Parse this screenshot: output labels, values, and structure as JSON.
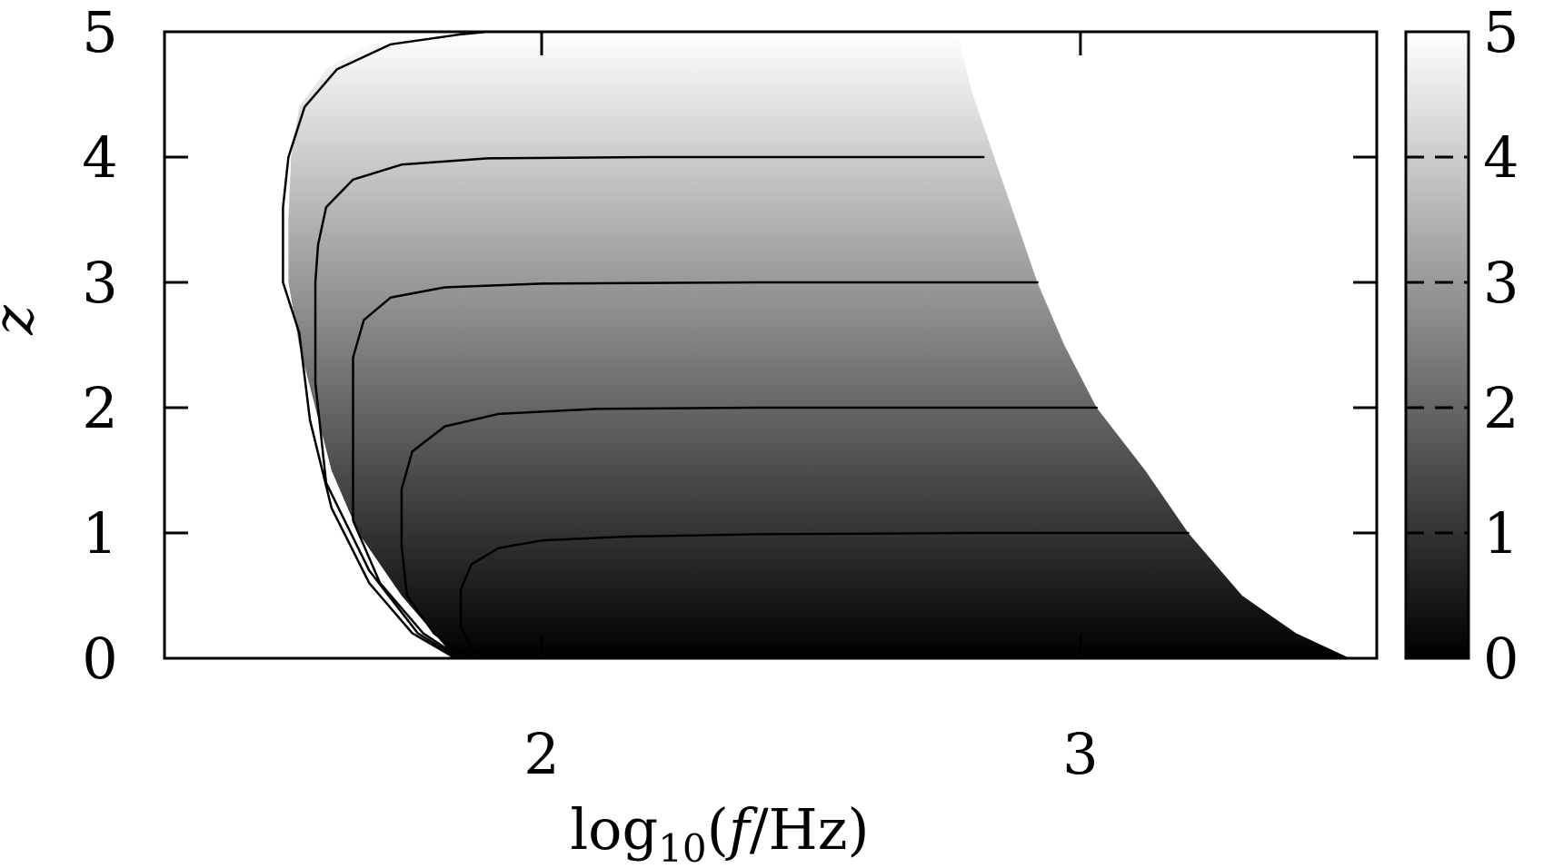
{
  "chart_data": {
    "type": "heatmap",
    "xlabel": "log10(f/Hz)",
    "xlabel_parts": {
      "prefix": "log",
      "subscript": "10",
      "open": "(",
      "variable": "f",
      "unit": "/Hz)"
    },
    "ylabel": "z",
    "xlim": [
      1.3,
      3.55
    ],
    "ylim": [
      0,
      5
    ],
    "x_ticks": [
      2,
      3
    ],
    "x_tick_labels": [
      "2",
      "3"
    ],
    "y_ticks": [
      0,
      1,
      2,
      3,
      4,
      5
    ],
    "y_tick_labels": [
      "0",
      "1",
      "2",
      "3",
      "4",
      "5"
    ],
    "colorbar": {
      "range": [
        0,
        5
      ],
      "ticks": [
        0,
        1,
        2,
        3,
        4,
        5
      ],
      "tick_labels": [
        "0",
        "1",
        "2",
        "3",
        "4",
        "5"
      ],
      "colormap": "grayscale",
      "low_color": "#000000",
      "high_color": "#ffffff"
    },
    "contour_levels": [
      1,
      2,
      3,
      4,
      5
    ],
    "grid": false,
    "region": {
      "left_boundary": [
        [
          1.84,
          0.0
        ],
        [
          1.8,
          0.2
        ],
        [
          1.74,
          0.5
        ],
        [
          1.66,
          1.0
        ],
        [
          1.61,
          1.5
        ],
        [
          1.58,
          2.0
        ],
        [
          1.55,
          2.5
        ],
        [
          1.53,
          3.0
        ],
        [
          1.53,
          3.5
        ],
        [
          1.535,
          4.0
        ],
        [
          1.55,
          4.4
        ],
        [
          1.6,
          4.7
        ],
        [
          1.68,
          4.9
        ],
        [
          1.8,
          4.98
        ],
        [
          1.9,
          5.0
        ]
      ],
      "right_boundary": [
        [
          3.5,
          0.0
        ],
        [
          3.4,
          0.2
        ],
        [
          3.3,
          0.5
        ],
        [
          3.2,
          1.0
        ],
        [
          3.12,
          1.5
        ],
        [
          3.03,
          2.0
        ],
        [
          2.97,
          2.5
        ],
        [
          2.92,
          3.0
        ],
        [
          2.88,
          3.5
        ],
        [
          2.84,
          4.0
        ],
        [
          2.8,
          4.5
        ],
        [
          2.77,
          5.0
        ]
      ]
    },
    "contours": [
      {
        "level": 1,
        "points": [
          [
            1.88,
            0.0
          ],
          [
            1.85,
            0.25
          ],
          [
            1.85,
            0.55
          ],
          [
            1.87,
            0.75
          ],
          [
            1.92,
            0.88
          ],
          [
            2.0,
            0.94
          ],
          [
            2.15,
            0.97
          ],
          [
            2.4,
            0.99
          ],
          [
            2.8,
            1.0
          ],
          [
            3.2,
            1.0
          ]
        ]
      },
      {
        "level": 2,
        "points": [
          [
            1.86,
            0.0
          ],
          [
            1.8,
            0.2
          ],
          [
            1.75,
            0.5
          ],
          [
            1.74,
            0.9
          ],
          [
            1.74,
            1.35
          ],
          [
            1.76,
            1.65
          ],
          [
            1.82,
            1.85
          ],
          [
            1.92,
            1.95
          ],
          [
            2.1,
            1.99
          ],
          [
            2.4,
            2.0
          ],
          [
            3.03,
            2.0
          ]
        ]
      },
      {
        "level": 3,
        "points": [
          [
            1.85,
            0.0
          ],
          [
            1.78,
            0.2
          ],
          [
            1.7,
            0.6
          ],
          [
            1.65,
            1.1
          ],
          [
            1.65,
            1.9
          ],
          [
            1.65,
            2.4
          ],
          [
            1.67,
            2.7
          ],
          [
            1.72,
            2.88
          ],
          [
            1.82,
            2.96
          ],
          [
            2.0,
            2.99
          ],
          [
            2.4,
            3.0
          ],
          [
            2.92,
            3.0
          ]
        ]
      },
      {
        "level": 4,
        "points": [
          [
            1.845,
            0.0
          ],
          [
            1.77,
            0.2
          ],
          [
            1.68,
            0.7
          ],
          [
            1.6,
            1.4
          ],
          [
            1.58,
            2.2
          ],
          [
            1.58,
            3.0
          ],
          [
            1.585,
            3.3
          ],
          [
            1.6,
            3.6
          ],
          [
            1.65,
            3.82
          ],
          [
            1.74,
            3.94
          ],
          [
            1.9,
            3.99
          ],
          [
            2.2,
            4.0
          ],
          [
            2.82,
            4.0
          ]
        ]
      },
      {
        "level": 5,
        "points": [
          [
            1.84,
            0.0
          ],
          [
            1.76,
            0.2
          ],
          [
            1.68,
            0.6
          ],
          [
            1.61,
            1.2
          ],
          [
            1.57,
            1.9
          ],
          [
            1.55,
            2.6
          ],
          [
            1.52,
            3.0
          ],
          [
            1.52,
            3.6
          ],
          [
            1.53,
            4.0
          ],
          [
            1.56,
            4.4
          ],
          [
            1.62,
            4.7
          ],
          [
            1.72,
            4.9
          ],
          [
            1.85,
            4.98
          ],
          [
            1.9,
            5.0
          ]
        ]
      }
    ],
    "colors": {
      "axis": "#000000",
      "contour": "#000000",
      "background": "#ffffff"
    }
  }
}
